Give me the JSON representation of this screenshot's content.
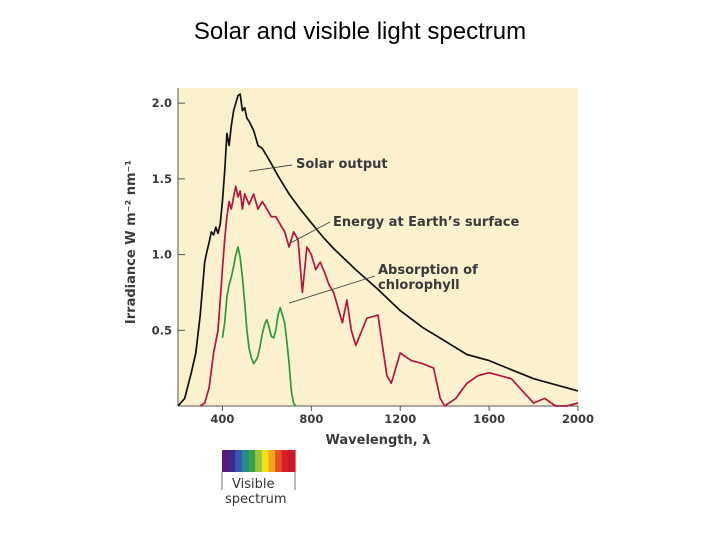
{
  "title": "Solar and visible light spectrum",
  "chart_data": {
    "type": "line",
    "xlabel": "Wavelength, λ",
    "ylabel": "Irradiance W m⁻² nm⁻¹",
    "xlim": [
      200,
      2000
    ],
    "ylim": [
      0,
      2.1
    ],
    "xticks": [
      400,
      800,
      1200,
      1600,
      2000
    ],
    "xtick_labels": [
      "400",
      "800",
      "1200",
      "1600",
      "2000"
    ],
    "yticks": [
      0.5,
      1.0,
      1.5,
      2.0
    ],
    "ytick_labels": [
      "0.5",
      "1.0",
      "1.5",
      "2.0"
    ],
    "grid": false,
    "background_color": "#fbf1cf",
    "series": [
      {
        "name": "Solar output",
        "color": "#111111",
        "x": [
          200,
          230,
          260,
          280,
          300,
          320,
          330,
          340,
          350,
          360,
          370,
          380,
          390,
          400,
          410,
          420,
          430,
          440,
          450,
          460,
          470,
          480,
          490,
          500,
          510,
          520,
          540,
          560,
          580,
          600,
          620,
          650,
          700,
          750,
          800,
          850,
          900,
          950,
          1000,
          1100,
          1200,
          1300,
          1400,
          1500,
          1600,
          1700,
          1800,
          1900,
          2000
        ],
        "y": [
          0.0,
          0.05,
          0.22,
          0.35,
          0.6,
          0.95,
          1.02,
          1.08,
          1.15,
          1.13,
          1.18,
          1.14,
          1.2,
          1.35,
          1.55,
          1.8,
          1.72,
          1.85,
          1.95,
          2.0,
          2.05,
          2.06,
          1.95,
          1.97,
          1.9,
          1.88,
          1.82,
          1.72,
          1.7,
          1.65,
          1.6,
          1.52,
          1.4,
          1.3,
          1.21,
          1.12,
          1.04,
          0.97,
          0.9,
          0.77,
          0.63,
          0.52,
          0.43,
          0.34,
          0.3,
          0.24,
          0.18,
          0.14,
          0.1
        ]
      },
      {
        "name": "Energy at Earth's surface",
        "color": "#b3153e",
        "x": [
          300,
          320,
          340,
          360,
          380,
          400,
          410,
          420,
          430,
          440,
          450,
          460,
          470,
          480,
          490,
          500,
          520,
          540,
          560,
          580,
          600,
          620,
          640,
          660,
          680,
          700,
          720,
          740,
          760,
          780,
          800,
          820,
          840,
          860,
          880,
          900,
          920,
          940,
          960,
          980,
          1000,
          1050,
          1100,
          1120,
          1140,
          1160,
          1200,
          1250,
          1300,
          1350,
          1380,
          1400,
          1450,
          1500,
          1550,
          1600,
          1650,
          1700,
          1750,
          1800,
          1850,
          1900,
          1950,
          2000
        ],
        "y": [
          0.0,
          0.02,
          0.12,
          0.35,
          0.5,
          0.9,
          1.1,
          1.25,
          1.35,
          1.3,
          1.38,
          1.45,
          1.38,
          1.42,
          1.3,
          1.4,
          1.33,
          1.4,
          1.3,
          1.35,
          1.3,
          1.25,
          1.25,
          1.2,
          1.15,
          1.05,
          1.15,
          1.1,
          0.75,
          1.05,
          1.0,
          0.9,
          0.95,
          0.88,
          0.8,
          0.75,
          0.65,
          0.55,
          0.7,
          0.5,
          0.4,
          0.58,
          0.6,
          0.4,
          0.2,
          0.15,
          0.35,
          0.3,
          0.28,
          0.25,
          0.05,
          0.0,
          0.05,
          0.15,
          0.2,
          0.22,
          0.2,
          0.18,
          0.1,
          0.02,
          0.05,
          0.0,
          0.0,
          0.02
        ]
      },
      {
        "name": "Absorption of chlorophyll",
        "color": "#2a9a3a",
        "x": [
          400,
          410,
          420,
          430,
          440,
          450,
          460,
          470,
          480,
          490,
          500,
          510,
          520,
          530,
          540,
          550,
          560,
          570,
          580,
          590,
          600,
          610,
          620,
          630,
          640,
          650,
          660,
          670,
          680,
          690,
          700,
          710,
          720,
          730
        ],
        "y": [
          0.45,
          0.55,
          0.72,
          0.8,
          0.85,
          0.92,
          1.0,
          1.05,
          0.98,
          0.85,
          0.68,
          0.5,
          0.38,
          0.32,
          0.28,
          0.3,
          0.33,
          0.4,
          0.48,
          0.54,
          0.57,
          0.52,
          0.46,
          0.45,
          0.5,
          0.6,
          0.65,
          0.6,
          0.55,
          0.42,
          0.28,
          0.1,
          0.02,
          0.0
        ]
      }
    ],
    "annotations": [
      {
        "lines": [
          "Solar output"
        ],
        "series": "Solar output",
        "x": 520,
        "y": 1.55
      },
      {
        "lines": [
          "Energy at Earth’s surface"
        ],
        "series": "Energy at Earth's surface",
        "x": 710,
        "y": 1.08
      },
      {
        "lines": [
          "Absorption of",
          "chlorophyll"
        ],
        "series": "Absorption of chlorophyll",
        "x": 700,
        "y": 0.68
      }
    ]
  },
  "visible_spectrum": {
    "label_line1": "Visible",
    "label_line2": "spectrum",
    "colors": [
      "#5b1a7a",
      "#3c2a8e",
      "#2f5bb0",
      "#1f8e86",
      "#3aa047",
      "#9ac43a",
      "#f2e21d",
      "#f6a51c",
      "#e8501e",
      "#d51f2a",
      "#c8182c"
    ]
  }
}
